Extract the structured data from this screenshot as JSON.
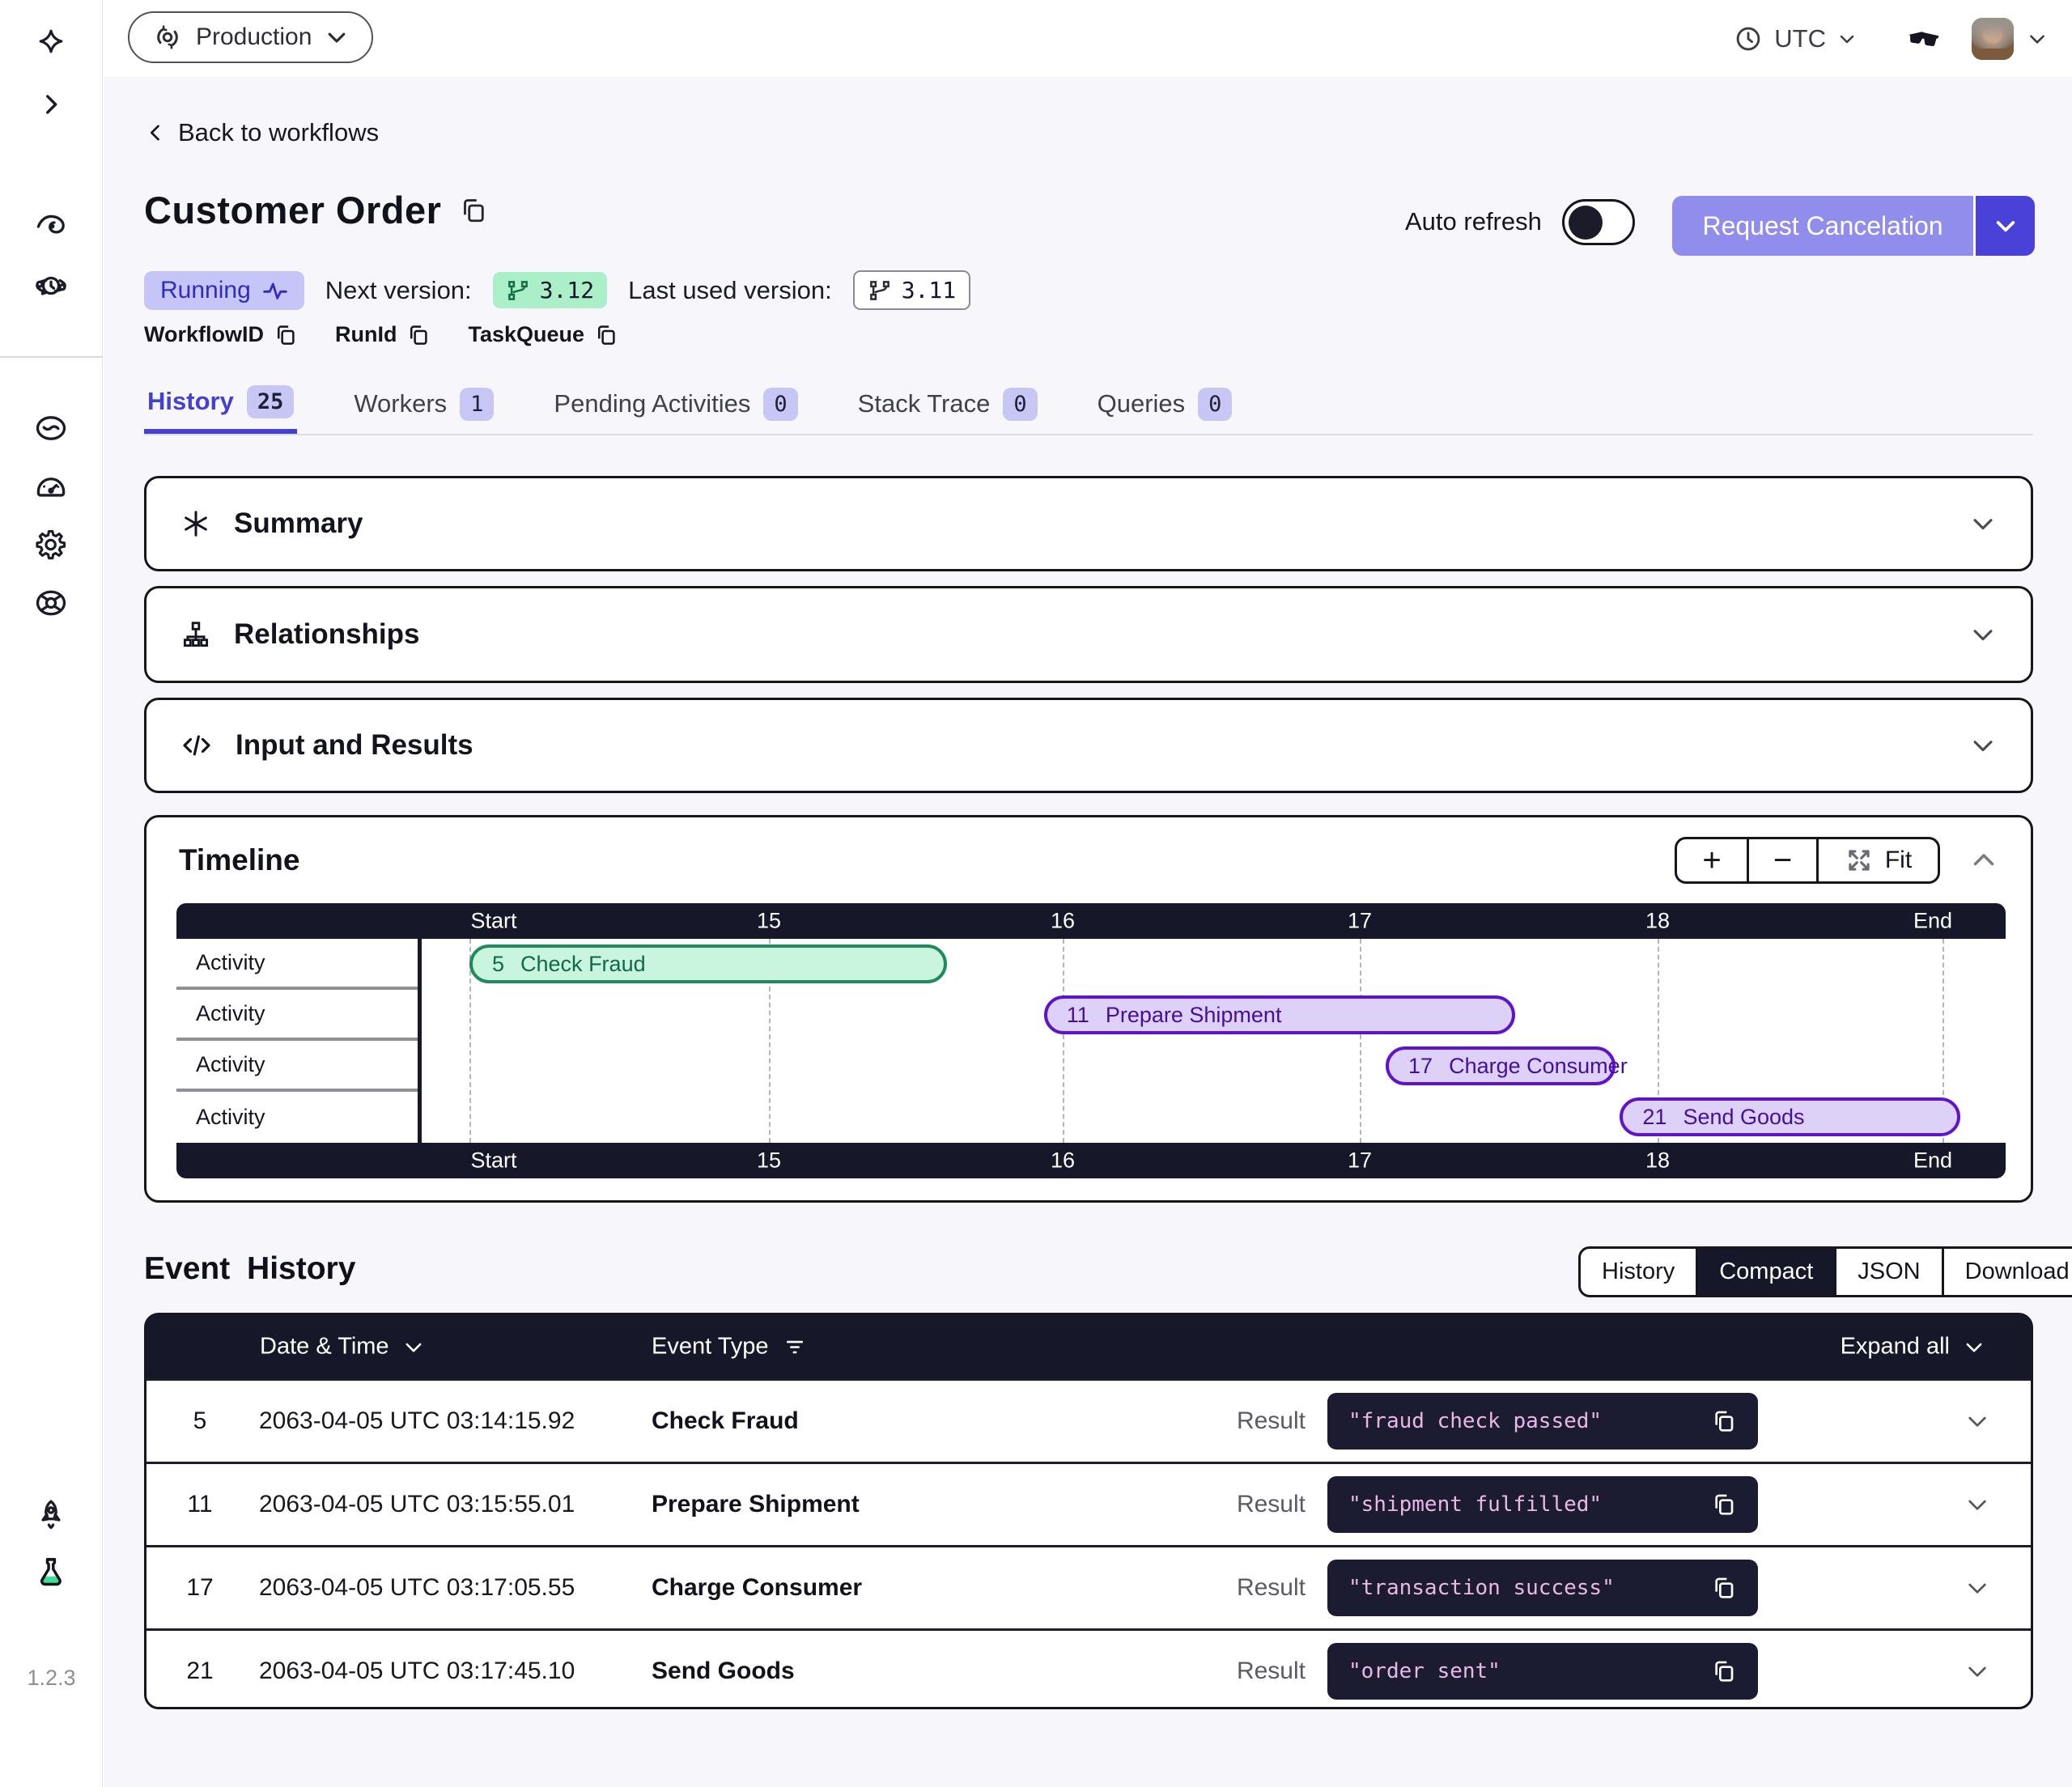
{
  "app": {
    "version": "1.2.3"
  },
  "topbar": {
    "namespace": "Production",
    "timezone": "UTC"
  },
  "workflow": {
    "back_label": "Back to workflows",
    "title": "Customer Order",
    "status": "Running",
    "next_version_label": "Next version:",
    "next_version": "3.12",
    "last_used_version_label": "Last used version:",
    "last_used_version": "3.11",
    "ids": [
      "WorkflowID",
      "RunId",
      "TaskQueue"
    ],
    "auto_refresh_label": "Auto refresh",
    "cancel_button": "Request Cancelation"
  },
  "tabs": [
    {
      "label": "History",
      "count": "25",
      "active": true
    },
    {
      "label": "Workers",
      "count": "1",
      "active": false
    },
    {
      "label": "Pending Activities",
      "count": "0",
      "active": false
    },
    {
      "label": "Stack Trace",
      "count": "0",
      "active": false
    },
    {
      "label": "Queries",
      "count": "0",
      "active": false
    }
  ],
  "sections": [
    {
      "icon": "asterisk-icon",
      "label": "Summary"
    },
    {
      "icon": "relationships-icon",
      "label": "Relationships"
    },
    {
      "icon": "code-icon",
      "label": "Input and Results"
    }
  ],
  "timeline": {
    "title": "Timeline",
    "controls": {
      "zoom_in": "+",
      "zoom_out": "−",
      "fit_label": "Fit"
    },
    "axis": [
      "Start",
      "15",
      "16",
      "17",
      "18",
      "End"
    ],
    "rows": [
      {
        "label": "Activity",
        "bar": {
          "id": "5",
          "name": "Check Fraud",
          "color": "green",
          "start_frac": 0.0,
          "end_frac": 0.324
        }
      },
      {
        "label": "Activity",
        "bar": {
          "id": "11",
          "name": "Prepare Shipment",
          "color": "purple",
          "start_frac": 0.39,
          "end_frac": 0.71
        }
      },
      {
        "label": "Activity",
        "bar": {
          "id": "17",
          "name": "Charge Consumer",
          "color": "purple",
          "start_frac": 0.622,
          "end_frac": 0.778
        }
      },
      {
        "label": "Activity",
        "bar": {
          "id": "21",
          "name": "Send Goods",
          "color": "purple",
          "start_frac": 0.781,
          "end_frac": 1.012
        }
      }
    ]
  },
  "event_history": {
    "title": "Event History",
    "views": [
      "History",
      "Compact",
      "JSON",
      "Download"
    ],
    "active_view": "Compact",
    "columns": {
      "date": "Date & Time",
      "type": "Event Type",
      "expand": "Expand all"
    },
    "result_label": "Result",
    "events": [
      {
        "id": "5",
        "time": "2063-04-05 UTC 03:14:15.92",
        "type": "Check Fraud",
        "result": "\"fraud check passed\""
      },
      {
        "id": "11",
        "time": "2063-04-05 UTC 03:15:55.01",
        "type": "Prepare Shipment",
        "result": "\"shipment fulfilled\""
      },
      {
        "id": "17",
        "time": "2063-04-05 UTC 03:17:05.55",
        "type": "Charge Consumer",
        "result": "\"transaction success\""
      },
      {
        "id": "21",
        "time": "2063-04-05 UTC 03:17:45.10",
        "type": "Send Goods",
        "result": "\"order sent\""
      }
    ]
  },
  "colors": {
    "accent": "#4640d0",
    "accent_light": "#918dec",
    "dark_bar": "#17172a",
    "chip_bg": "#1b1b31",
    "chip_text": "#e9b8e6",
    "running_bg": "#c6c5f8",
    "running_text": "#312db8",
    "green_bg": "#c9f4dd",
    "green_border": "#1f8a5c",
    "purple_bg": "#ddd1f8",
    "purple_border": "#5f13cb",
    "labs_flask": "#3fdf94",
    "page_bg": "#f6f6fb"
  }
}
